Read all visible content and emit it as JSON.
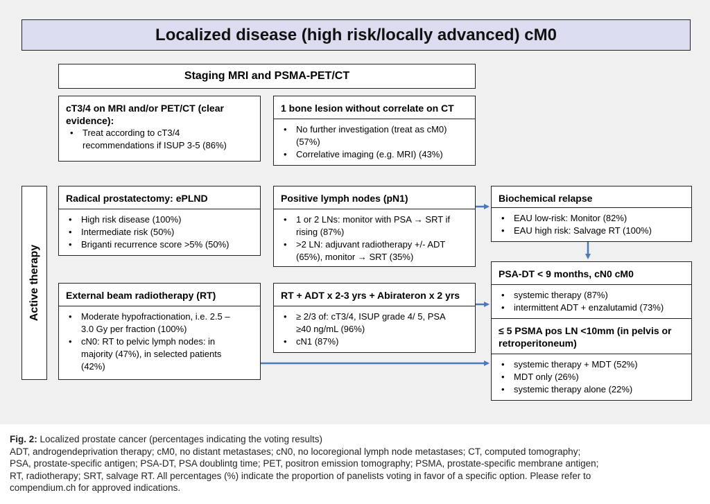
{
  "title": "Localized disease (high risk/locally advanced) cM0",
  "staging": "Staging MRI and PSMA-PET/CT",
  "ct34": {
    "header_line1": "cT3/4 on MRI and/or PET/CT (clear",
    "header_line2": "evidence):",
    "bullet1_line1": "Treat according to cT3/4",
    "bullet1_line2": "recommendations  if ISUP 3-5 (86%)"
  },
  "bone": {
    "header": "1 bone lesion without correlate on CT",
    "bullet1_line1": "No further investigation (treat as cM0)",
    "bullet1_line2": "(57%)",
    "bullet2": "Correlative imaging (e.g. MRI) (43%)"
  },
  "active_therapy": "Active therapy",
  "rp": {
    "header": "Radical prostatectomy: ePLND",
    "bullets": [
      "High risk disease (100%)",
      "Intermediate risk (50%)",
      "Briganti recurrence score >5% (50%)"
    ]
  },
  "pn1": {
    "header": "Positive lymph nodes (pN1)",
    "bullet1_line1": "1 or 2 LNs: monitor with PSA → SRT if",
    "bullet1_line2": "rising (87%)",
    "bullet2_line1": ">2 LN: adjuvant radiotherapy +/- ADT",
    "bullet2_line2": "(65%), monitor → SRT (35%)"
  },
  "bcr": {
    "header": "Biochemical relapse",
    "bullets": [
      "EAU low-risk: Monitor (82%)",
      "EAU high risk: Salvage RT (100%)"
    ]
  },
  "psadt": {
    "header": "PSA-DT < 9 months, cN0 cM0",
    "bullets": [
      "systemic therapy (87%)",
      "intermittent ADT + enzalutamid (73%)"
    ]
  },
  "ebrt": {
    "header": "External beam radiotherapy (RT)",
    "bullet1_line1": "Moderate hypofractionation, i.e. 2.5 –",
    "bullet1_line2": "3.0 Gy per fraction (100%)",
    "bullet2_line1": "cN0: RT to pelvic lymph nodes: in",
    "bullet2_line2": "majority (47%), in selected patients",
    "bullet2_line3": "(42%)"
  },
  "rtadt": {
    "header": "RT + ADT x 2-3 yrs + Abirateron x 2 yrs",
    "bullet1_line1": "≥ 2/3 of: cT3/4, ISUP grade 4/ 5, PSA",
    "bullet1_line2": "≥40 ng/mL (96%)",
    "bullet2": "cN1 (87%)"
  },
  "psma": {
    "header_line1": "≤ 5 PSMA pos LN <10mm (in pelvis or",
    "header_line2": "retroperitoneum)",
    "bullets": [
      "systemic therapy + MDT (52%)",
      "MDT only (26%)",
      "systemic therapy alone (22%)"
    ]
  },
  "caption": {
    "fig_label": "Fig. 2:",
    "fig_title": " Localized prostate cancer (percentages indicating the voting results)",
    "line2": "ADT, androgendeprivation therapy; cM0, no distant metastases; cN0, no locoregional lymph node metastases; CT, computed tomography;",
    "line3": "PSA, prostate-specific antigen; PSA-DT, PSA doublintg time; PET, positron emission tomography; PSMA, prostate-specific membrane antigen;",
    "line4": "RT, radiotherapy; SRT, salvage RT. All percentages (%) indicate the proportion of panelists voting in favor of a specific option. Please refer to",
    "line5": "compendium.ch for approved indications."
  },
  "colors": {
    "arrow": "#4a78b8",
    "title_bg": "#dcdcf0",
    "panel_bg": "#f0f0f0"
  }
}
